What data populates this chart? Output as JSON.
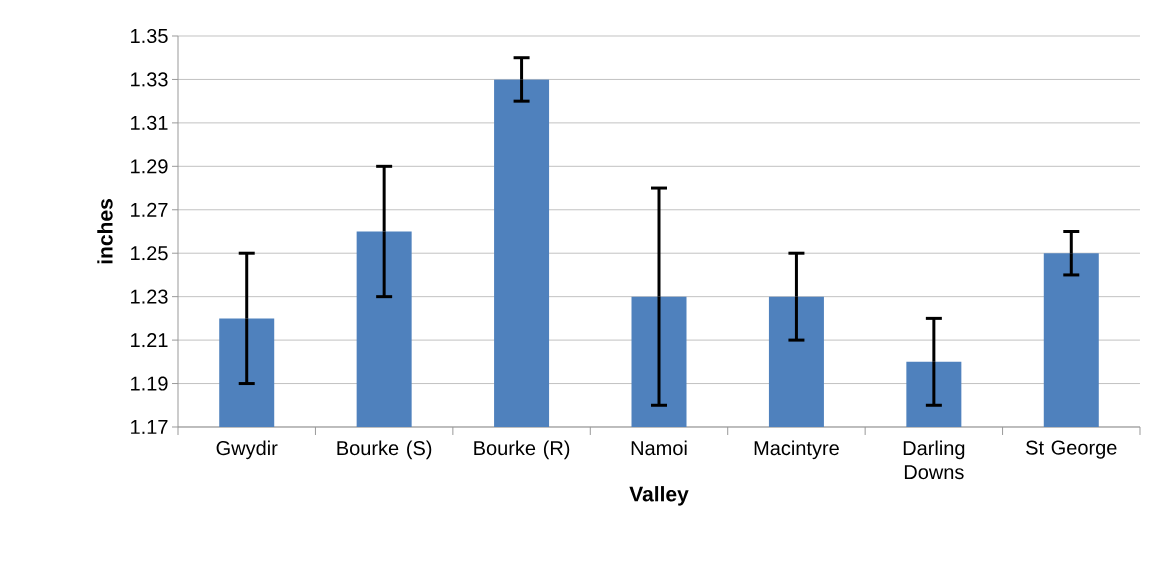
{
  "chart_data": {
    "type": "bar",
    "xlabel": "Valley",
    "ylabel": "inches",
    "categories": [
      "Gwydir",
      "Bourke (S)",
      "Bourke (R)",
      "Namoi",
      "Macintyre",
      "Darling Downs",
      "St George"
    ],
    "values": [
      1.22,
      1.26,
      1.33,
      1.23,
      1.23,
      1.2,
      1.25
    ],
    "errors": [
      0.03,
      0.03,
      0.01,
      0.05,
      0.02,
      0.02,
      0.01
    ],
    "color": "#4f81bd",
    "ylim": [
      1.17,
      1.35
    ],
    "yticks": [
      1.17,
      1.19,
      1.21,
      1.23,
      1.25,
      1.27,
      1.29,
      1.31,
      1.33,
      1.35
    ],
    "grid": "y"
  }
}
